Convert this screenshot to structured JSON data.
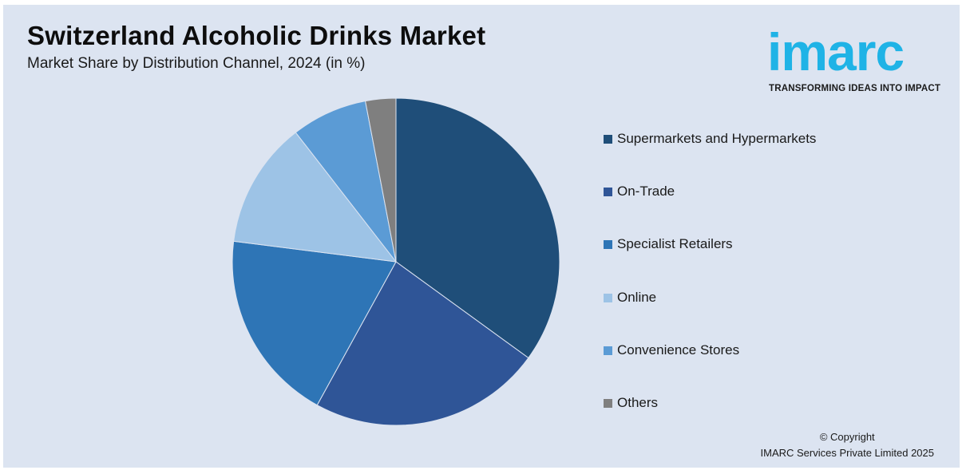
{
  "header": {
    "title": "Switzerland Alcoholic Drinks Market",
    "subtitle": "Market Share by Distribution Channel, 2024 (in %)"
  },
  "logo": {
    "text": "imarc",
    "tagline": "TRANSFORMING IDEAS INTO IMPACT",
    "color": "#1fb3e6"
  },
  "chart_data": {
    "type": "pie",
    "title": "Switzerland Alcoholic Drinks Market",
    "subtitle": "Market Share by Distribution Channel, 2024 (in %)",
    "legend_position": "right",
    "categories": [
      "Supermarkets and Hypermarkets",
      "On-Trade",
      "Specialist Retailers",
      "Online",
      "Convenience Stores",
      "Others"
    ],
    "values": [
      35,
      23,
      19,
      12.5,
      7.5,
      3
    ],
    "colors": [
      "#1f4e79",
      "#2f5597",
      "#2e75b6",
      "#9dc3e6",
      "#5b9bd5",
      "#7f7f7f"
    ]
  },
  "footer": {
    "copyright_line1": "© Copyright",
    "copyright_line2": "IMARC Services Private Limited 2025"
  }
}
